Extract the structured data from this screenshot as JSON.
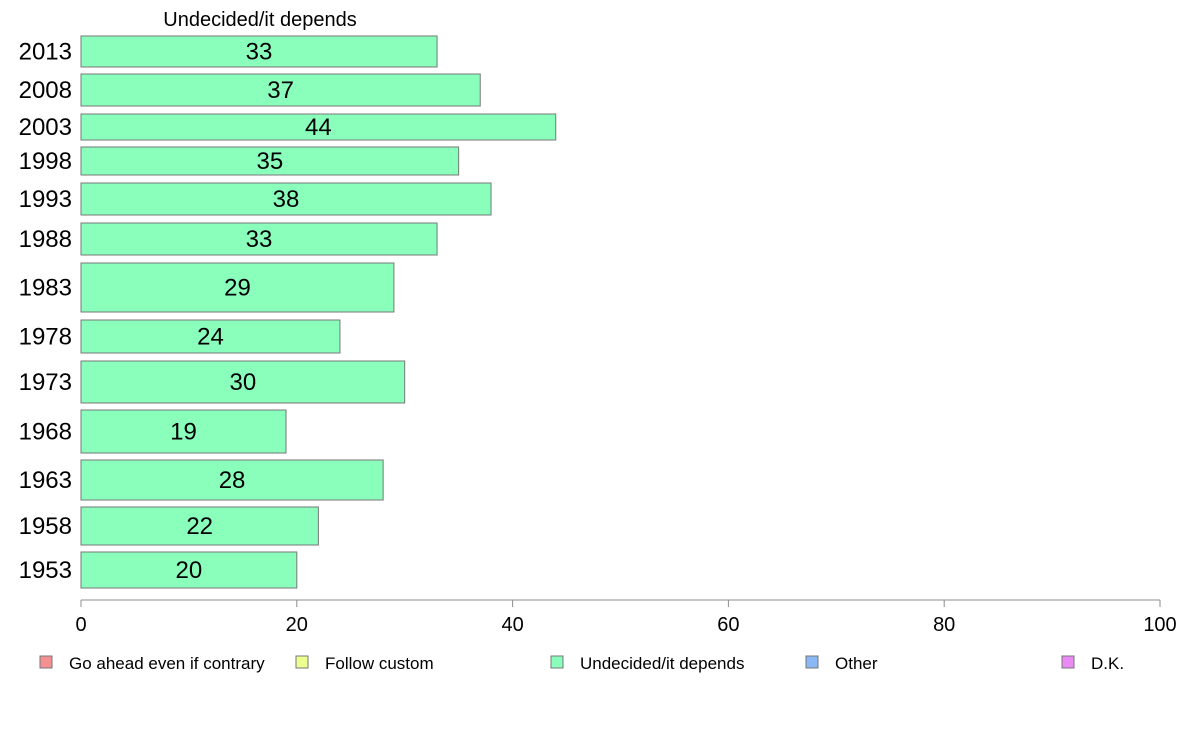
{
  "chart_data": {
    "type": "bar",
    "orientation": "horizontal",
    "title": "Undecided/it depends",
    "categories": [
      "2013",
      "2008",
      "2003",
      "1998",
      "1993",
      "1988",
      "1983",
      "1978",
      "1973",
      "1968",
      "1963",
      "1958",
      "1953"
    ],
    "series": [
      {
        "name": "Undecided/it depends",
        "values": [
          33,
          37,
          44,
          35,
          38,
          33,
          29,
          24,
          30,
          19,
          28,
          22,
          20
        ]
      }
    ],
    "xlim": [
      0,
      100
    ],
    "xticks": [
      "0",
      "20",
      "40",
      "60",
      "80",
      "100"
    ],
    "grid": false,
    "bar_color": "#8affbc",
    "legend": [
      {
        "label": "Go ahead even if contrary",
        "color": "#f59090"
      },
      {
        "label": "Follow custom",
        "color": "#eeff90"
      },
      {
        "label": "Undecided/it depends",
        "color": "#8affbc"
      },
      {
        "label": "Other",
        "color": "#8ab8f5"
      },
      {
        "label": "D.K.",
        "color": "#e98af5"
      }
    ],
    "legend_position": "bottom"
  }
}
